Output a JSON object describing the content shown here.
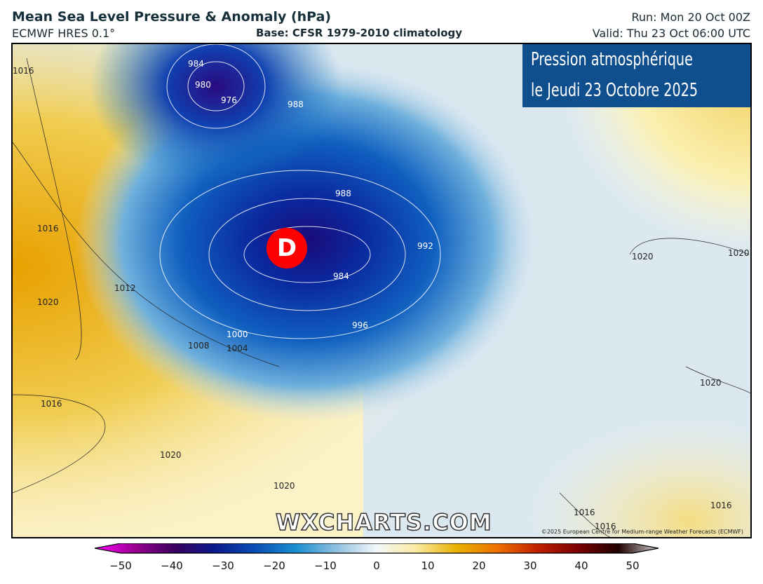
{
  "header": {
    "title": "Mean Sea Level Pressure & Anomaly (hPa)",
    "model": "ECMWF HRES 0.1°",
    "base": "Base: CFSR 1979-2010 climatology",
    "run": "Run: Mon 20 Oct 00Z",
    "valid": "Valid: Thu 23 Oct 06:00 UTC"
  },
  "banner": {
    "line1": "Pression atmosphérique",
    "line2": "le Jeudi 23 Octobre 2025"
  },
  "map": {
    "low_marker": "D",
    "watermark": "WXCHARTS.COM",
    "copyright": "©2025 European Centre for Medium-range Weather Forecasts (ECMWF)",
    "contour_labels": [
      "984",
      "980",
      "976",
      "988",
      "988",
      "992",
      "984",
      "996",
      "1000",
      "1004",
      "1008",
      "1012",
      "1016",
      "1016",
      "1020",
      "1016",
      "1020",
      "1020",
      "1020",
      "1020",
      "1020",
      "1016",
      "1016",
      "1016"
    ]
  },
  "colorbar": {
    "ticks": [
      "−50",
      "−40",
      "−30",
      "−20",
      "−10",
      "0",
      "10",
      "20",
      "30",
      "40",
      "50"
    ],
    "range": [
      -50,
      50
    ],
    "colors": [
      "#ff00ff",
      "#9a0090",
      "#3a0060",
      "#0a1a8e",
      "#0a4fb5",
      "#1a8fd0",
      "#8ec0e0",
      "#f4f8fa",
      "#fbe9a0",
      "#e8b000",
      "#ee7000",
      "#c02000",
      "#7a0000",
      "#200000",
      "#d0d0d0"
    ]
  }
}
